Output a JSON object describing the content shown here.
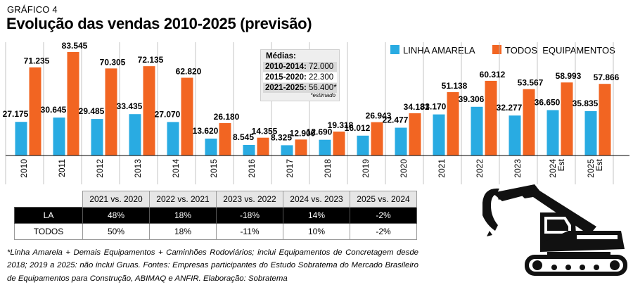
{
  "header": {
    "tag": "GRÁFICO 4",
    "title": "Evolução das vendas 2010-2025 (previsão)"
  },
  "chart_data": {
    "type": "bar",
    "categories": [
      "2010",
      "2011",
      "2012",
      "2013",
      "2014",
      "2015",
      "2016",
      "2017",
      "2018",
      "2019",
      "2020",
      "2021",
      "2022",
      "2023",
      "2024 Est",
      "2025 Est"
    ],
    "series": [
      {
        "name": "LINHA AMARELA",
        "color": "#29abe2",
        "values": [
          27175,
          30645,
          29485,
          33435,
          27070,
          13620,
          8545,
          8325,
          12690,
          16012,
          22477,
          33170,
          39306,
          32277,
          36650,
          35835
        ],
        "labels": [
          "27.175",
          "30.645",
          "29.485",
          "33.435",
          "27.070",
          "13.620",
          "8.545",
          "8.325",
          "12.690",
          "16.012",
          "22.477",
          "33.170",
          "39.306",
          "32.277",
          "36.650",
          "35.835"
        ]
      },
      {
        "name": "TODOS  EQUIPAMENTOS",
        "color": "#f26522",
        "values": [
          71235,
          83545,
          70305,
          72135,
          62820,
          26180,
          14355,
          12900,
          19318,
          26943,
          34181,
          51138,
          60312,
          53567,
          58993,
          57866
        ],
        "labels": [
          "71.235",
          "83.545",
          "70.305",
          "72.135",
          "62.820",
          "26.180",
          "14.355",
          "12.900",
          "19.318",
          "26.943",
          "34.181",
          "51.138",
          "60.312",
          "53.567",
          "58.993",
          "57.866"
        ]
      }
    ],
    "legend_position": "top-right",
    "grid": false
  },
  "medias": {
    "title": "Médias:",
    "rows": [
      {
        "period": "2010-2014:",
        "value": "72.000"
      },
      {
        "period": "2015-2020:",
        "value": "22.300"
      },
      {
        "period": "2021-2025:",
        "value": "56.400*"
      }
    ],
    "note": "*estimado"
  },
  "comparison_table": {
    "headers": [
      "2021 vs. 2020",
      "2022 vs. 2021",
      "2023 vs. 2022",
      "2024 vs. 2023",
      "2025 vs. 2024"
    ],
    "rows": [
      {
        "label": "LA",
        "values": [
          "48%",
          "18%",
          "-18%",
          "14%",
          "-2%"
        ]
      },
      {
        "label": "TODOS",
        "values": [
          "50%",
          "18%",
          "-11%",
          "10%",
          "-2%"
        ]
      }
    ]
  },
  "footnote": "*Linha Amarela + Demais Equipamentos + Caminhões Rodoviários; inclui Equipamentos de Concretagem desde 2018; 2019 a 2025: não inclui Gruas. Fontes: Empresas participantes do Estudo Sobratema do Mercado Brasileiro de Equipamentos para Construção, ABIMAQ e ANFIR. Elaboração: Sobratema",
  "illustration": {
    "icon": "excavator-icon"
  }
}
